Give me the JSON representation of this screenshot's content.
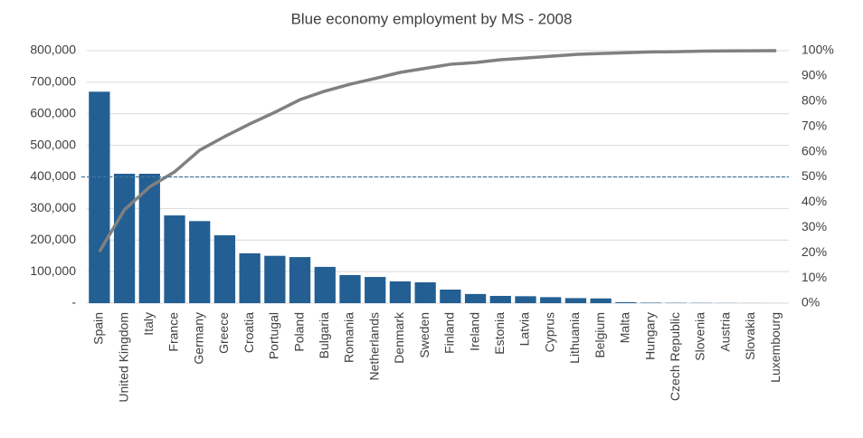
{
  "chart_data": {
    "type": "pareto",
    "title": "Blue economy employment by MS - 2008",
    "categories": [
      "Spain",
      "United Kingdom",
      "Italy",
      "France",
      "Germany",
      "Greece",
      "Croatia",
      "Portugal",
      "Poland",
      "Bulgaria",
      "Romania",
      "Netherlands",
      "Denmark",
      "Sweden",
      "Finland",
      "Ireland",
      "Estonia",
      "Latvia",
      "Cyprus",
      "Lithuania",
      "Belgium",
      "Malta",
      "Hungary",
      "Czech Republic",
      "Slovenia",
      "Austria",
      "Slovakia",
      "Luxembourg"
    ],
    "series": [
      {
        "type": "bar",
        "color": "#235f93",
        "values": [
          670000,
          410000,
          410000,
          278000,
          260000,
          215000,
          158000,
          150000,
          146000,
          115000,
          89000,
          83000,
          69000,
          66000,
          43000,
          29000,
          23000,
          22000,
          19000,
          16000,
          15000,
          3000,
          1500,
          1000,
          800,
          500,
          300,
          100
        ]
      },
      {
        "type": "line",
        "axis": "y2",
        "color": "#808080",
        "values": [
          20.4,
          37,
          46,
          52,
          60.6,
          66,
          71,
          75.6,
          80.6,
          84,
          86.7,
          89,
          91.4,
          93,
          94.6,
          95.3,
          96.4,
          97.1,
          97.8,
          98.5,
          98.9,
          99.2,
          99.5,
          99.6,
          99.8,
          99.9,
          99.95,
          100
        ]
      }
    ],
    "reference_line": {
      "value": 50,
      "axis": "y2",
      "color": "#41799e",
      "dashed": true
    },
    "ylim": [
      0,
      800000
    ],
    "yticks": [
      {
        "value": 0,
        "label": "-"
      },
      {
        "value": 100000,
        "label": "100,000"
      },
      {
        "value": 200000,
        "label": "200,000"
      },
      {
        "value": 300000,
        "label": "300,000"
      },
      {
        "value": 400000,
        "label": "400,000"
      },
      {
        "value": 500000,
        "label": "500,000"
      },
      {
        "value": 600000,
        "label": "600,000"
      },
      {
        "value": 700000,
        "label": "700,000"
      },
      {
        "value": 800000,
        "label": "800,000"
      }
    ],
    "y2lim": [
      0,
      100
    ],
    "y2ticks": [
      {
        "value": 0,
        "label": "0%"
      },
      {
        "value": 10,
        "label": "10%"
      },
      {
        "value": 20,
        "label": "20%"
      },
      {
        "value": 30,
        "label": "30%"
      },
      {
        "value": 40,
        "label": "40%"
      },
      {
        "value": 50,
        "label": "50%"
      },
      {
        "value": 60,
        "label": "60%"
      },
      {
        "value": 70,
        "label": "70%"
      },
      {
        "value": 80,
        "label": "80%"
      },
      {
        "value": 90,
        "label": "90%"
      },
      {
        "value": 100,
        "label": "100%"
      }
    ],
    "grid": true
  }
}
